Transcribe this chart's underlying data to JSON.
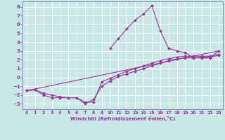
{
  "xlabel": "Windchill (Refroidissement éolien,°C)",
  "bg_color": "#c8e8e8",
  "grid_color": "#ffffff",
  "line_color": "#993399",
  "spine_color": "#7777aa",
  "xlim": [
    -0.5,
    23.5
  ],
  "ylim": [
    -3.6,
    8.6
  ],
  "xticks": [
    0,
    1,
    2,
    3,
    4,
    5,
    6,
    7,
    8,
    9,
    10,
    11,
    12,
    13,
    14,
    15,
    16,
    17,
    18,
    19,
    20,
    21,
    22,
    23
  ],
  "yticks": [
    -3,
    -2,
    -1,
    0,
    1,
    2,
    3,
    4,
    5,
    6,
    7,
    8
  ],
  "series_main": {
    "x": [
      10,
      11,
      12,
      13,
      14,
      15,
      16,
      17,
      18,
      19,
      20,
      21,
      22,
      23
    ],
    "y": [
      3.3,
      4.4,
      5.5,
      6.5,
      7.2,
      8.1,
      5.3,
      3.3,
      3.0,
      2.8,
      2.2,
      2.2,
      2.2,
      3.0
    ]
  },
  "series_line2": {
    "x": [
      0,
      1,
      2,
      3,
      4,
      5,
      6,
      7,
      8,
      9,
      10,
      11,
      12,
      13,
      14,
      15,
      16,
      17,
      18,
      19,
      20,
      21,
      22,
      23
    ],
    "y": [
      -1.5,
      -1.4,
      -1.8,
      -2.0,
      -2.2,
      -2.3,
      -2.3,
      -2.8,
      -2.8,
      -0.5,
      -0.1,
      0.3,
      0.7,
      1.0,
      1.3,
      1.6,
      1.9,
      2.1,
      2.3,
      2.4,
      2.4,
      2.4,
      2.4,
      2.6
    ]
  },
  "series_line3": {
    "x": [
      0,
      1,
      2,
      3,
      4,
      5,
      6,
      7,
      8,
      9,
      10,
      11,
      12,
      13,
      14,
      15,
      16,
      17,
      18,
      19,
      20,
      21,
      22,
      23
    ],
    "y": [
      -1.5,
      -1.4,
      -2.0,
      -2.3,
      -2.3,
      -2.3,
      -2.3,
      -3.0,
      -2.5,
      -1.0,
      -0.4,
      0.1,
      0.4,
      0.7,
      1.0,
      1.3,
      1.6,
      1.9,
      2.1,
      2.2,
      2.2,
      2.3,
      2.3,
      2.5
    ]
  },
  "series_diag": {
    "x": [
      0,
      23
    ],
    "y": [
      -1.5,
      3.0
    ]
  }
}
